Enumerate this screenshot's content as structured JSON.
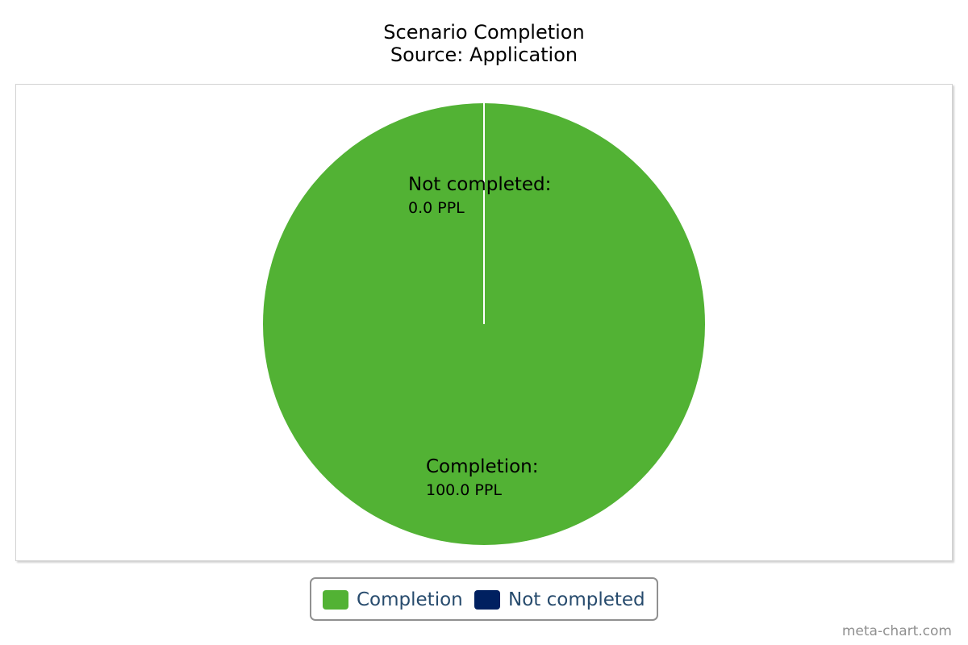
{
  "chart_data": {
    "type": "pie",
    "title": "Scenario Completion",
    "subtitle": "Source: Application",
    "unit": "PPL",
    "slices": [
      {
        "name": "Completion",
        "value": 100.0,
        "label": "Completion:",
        "value_label": "100.0 PPL",
        "color": "#52b234"
      },
      {
        "name": "Not completed",
        "value": 0.0,
        "label": "Not completed:",
        "value_label": "0.0 PPL",
        "color": "#002060"
      }
    ],
    "legend": {
      "placement": "bottom-center",
      "items": [
        "Completion",
        "Not completed"
      ]
    }
  },
  "credit": "meta-chart.com"
}
